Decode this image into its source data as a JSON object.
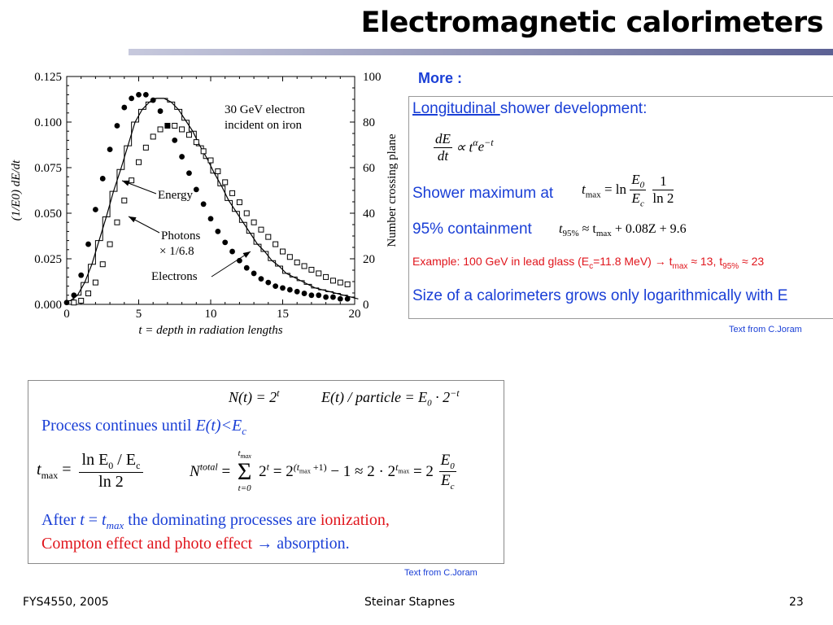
{
  "slide": {
    "title": "Electromagnetic calorimeters",
    "more_label": "More :",
    "credit_top": "Text from C.Joram",
    "credit_bottom": "Text from C.Joram",
    "footer_left": "FYS4550, 2005",
    "footer_center": "Steinar Stapnes",
    "footer_right": "23",
    "accent_color": "#1a3fd6",
    "red_color": "#e0151c",
    "bar_colors": [
      "#c7c9dd",
      "#5c6194"
    ]
  },
  "box1": {
    "heading_underlined": "Longitudinal ",
    "heading_rest": "shower development:",
    "shower_max_label": "Shower maximum at",
    "containment_label": "95% containment",
    "example_prefix": "Example: 100 GeV in lead glass (E",
    "example_c": "c",
    "example_mid": "=11.8 MeV) → t",
    "example_max": "max",
    "example_mid2": " ≈ 13,  t",
    "example_95": "95%",
    "example_end": " ≈ 23",
    "size_text": "Size of a calorimeters grows only logarithmically with E",
    "formula_dedt_num": "dE",
    "formula_dedt_den": "dt",
    "formula_prop": "∝ t",
    "formula_alpha": "α",
    "formula_e": "e",
    "formula_minus_t": "−t",
    "tmax_t": "t",
    "tmax_sub": "max",
    "tmax_eq": "= ln",
    "tmax_E0": "E",
    "tmax_E0_sub": "0",
    "tmax_Ec": "E",
    "tmax_Ec_sub": "c",
    "tmax_one": "1",
    "tmax_ln2": "ln 2",
    "t95_t": "t",
    "t95_sub": "95%",
    "t95_rest": "≈ t",
    "t95_max": "max",
    "t95_end": "+ 0.08Z + 9.6"
  },
  "box2": {
    "N_eq": "N(t) = 2",
    "N_exp": "t",
    "E_eq": "E(t) / particle = E",
    "E_sub": "0",
    "E_dot": " · 2",
    "E_exp": "−t",
    "process_prefix": "Process continues until ",
    "process_cond": "E(t)<E",
    "process_cond_sub": "c",
    "tmax_t": "t",
    "tmax_sub": "max",
    "tmax_eq": "=",
    "tmax_num": "ln E",
    "tmax_num_sub0": "0",
    "tmax_num_slash": " / E",
    "tmax_num_subc": "c",
    "tmax_den": "ln 2",
    "ntot_N": "N",
    "ntot_sup": "total",
    "ntot_eq": "=",
    "sum_top": "t",
    "sum_top_sub": "max",
    "sum_bot": "t=0",
    "ntot_sum_term": "2",
    "ntot_sum_exp": "t",
    "ntot_eq2": "= 2",
    "ntot_exp2": "(t",
    "ntot_exp2_sub": "max",
    "ntot_exp2_end": " +1)",
    "ntot_minus": " − 1 ≈ 2 · 2",
    "ntot_exp3": "t",
    "ntot_exp3_sub": "max",
    "ntot_eq3": "= 2",
    "ntot_frac_num": "E",
    "ntot_frac_num_sub": "0",
    "ntot_frac_den": "E",
    "ntot_frac_den_sub": "c",
    "after_prefix": "After ",
    "after_t": "t",
    "after_eq": " = ",
    "after_tmax": "t",
    "after_tmax_sub": "max",
    "after_mid": " the dominating processes are ",
    "after_ionization": "ionization,",
    "after_compton": "Compton effect and photo effect ",
    "after_arrow": "→ absorption."
  },
  "chart_data": {
    "type": "scatter",
    "annotation_title": "30 GeV electron",
    "annotation_title2": "incident on iron",
    "xlabel": "t = depth in radiation lengths",
    "ylabel_left": "(1/E0) dE/dt",
    "ylabel_right": "Number crossing plane",
    "xlim": [
      0,
      20
    ],
    "ylim_left": [
      0,
      0.125
    ],
    "ylim_right": [
      0,
      100
    ],
    "x_ticks": [
      "0",
      "5",
      "10",
      "15",
      "20"
    ],
    "y_ticks_left": [
      "0.000",
      "0.025",
      "0.050",
      "0.075",
      "0.100",
      "0.125"
    ],
    "y_ticks_right": [
      "0",
      "20",
      "40",
      "60",
      "80",
      "100"
    ],
    "labels": {
      "energy": "Energy",
      "photons": "Photons",
      "photons_scale": "× 1/6.8",
      "electrons": "Electrons"
    },
    "series": [
      {
        "name": "Energy",
        "kind": "histogram",
        "x": [
          0,
          0.5,
          1,
          1.5,
          2,
          2.5,
          3,
          3.5,
          4,
          4.5,
          5,
          5.5,
          6,
          6.5,
          7,
          7.5,
          8,
          8.5,
          9,
          9.5,
          10,
          10.5,
          11,
          11.5,
          12,
          12.5,
          13,
          13.5,
          14,
          14.5,
          15,
          15.5,
          16,
          16.5,
          17,
          17.5,
          18,
          18.5,
          19,
          19.5,
          20
        ],
        "values": [
          0.002,
          0.005,
          0.012,
          0.022,
          0.035,
          0.048,
          0.062,
          0.074,
          0.087,
          0.1,
          0.107,
          0.111,
          0.113,
          0.113,
          0.111,
          0.107,
          0.101,
          0.095,
          0.087,
          0.08,
          0.072,
          0.065,
          0.057,
          0.051,
          0.045,
          0.039,
          0.033,
          0.029,
          0.024,
          0.021,
          0.017,
          0.015,
          0.013,
          0.011,
          0.009,
          0.008,
          0.007,
          0.006,
          0.005,
          0.004,
          0.003
        ]
      },
      {
        "name": "Photons × 1/6.8",
        "kind": "open_squares",
        "x": [
          0.5,
          1,
          1.5,
          2,
          2.5,
          3,
          3.5,
          4,
          4.5,
          5,
          5.5,
          6,
          6.5,
          7,
          7.5,
          8,
          8.5,
          9,
          9.5,
          10,
          10.5,
          11,
          11.5,
          12,
          12.5,
          13,
          13.5,
          14,
          14.5,
          15,
          15.5,
          16,
          16.5,
          17,
          17.5,
          18,
          18.5,
          19,
          19.5
        ],
        "values": [
          0.001,
          0.002,
          0.006,
          0.012,
          0.022,
          0.033,
          0.045,
          0.057,
          0.068,
          0.078,
          0.086,
          0.092,
          0.096,
          0.098,
          0.098,
          0.096,
          0.093,
          0.089,
          0.084,
          0.079,
          0.073,
          0.067,
          0.061,
          0.056,
          0.05,
          0.045,
          0.041,
          0.037,
          0.033,
          0.029,
          0.026,
          0.023,
          0.021,
          0.019,
          0.017,
          0.015,
          0.013,
          0.012,
          0.011
        ]
      },
      {
        "name": "Electrons",
        "kind": "filled_circles",
        "x": [
          0,
          0.5,
          1,
          1.5,
          2,
          2.5,
          3,
          3.5,
          4,
          4.5,
          5,
          5.5,
          6,
          6.5,
          7,
          7.5,
          8,
          8.5,
          9,
          9.5,
          10,
          10.5,
          11,
          11.5,
          12,
          12.5,
          13,
          13.5,
          14,
          14.5,
          15,
          15.5,
          16,
          16.5,
          17,
          17.5,
          18,
          18.5,
          19,
          19.5
        ],
        "values": [
          0.001,
          0.005,
          0.016,
          0.033,
          0.052,
          0.069,
          0.085,
          0.098,
          0.108,
          0.113,
          0.115,
          0.115,
          0.112,
          0.106,
          0.098,
          0.09,
          0.081,
          0.072,
          0.063,
          0.055,
          0.047,
          0.04,
          0.034,
          0.029,
          0.024,
          0.02,
          0.017,
          0.014,
          0.012,
          0.01,
          0.009,
          0.008,
          0.007,
          0.006,
          0.005,
          0.005,
          0.004,
          0.004,
          0.003,
          0.003
        ]
      }
    ]
  }
}
